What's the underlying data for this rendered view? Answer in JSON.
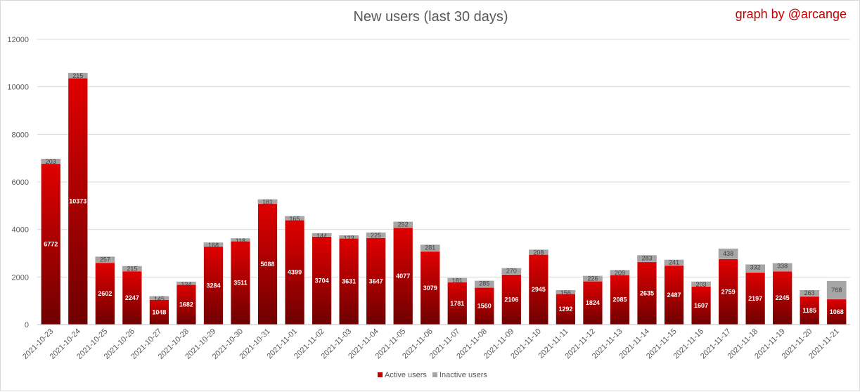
{
  "chart_data": {
    "type": "bar",
    "stacked": true,
    "title": "New users (last 30 days)",
    "credit": "graph by @arcange",
    "categories": [
      "2021-10-23",
      "2021-10-24",
      "2021-10-25",
      "2021-10-26",
      "2021-10-27",
      "2021-10-28",
      "2021-10-29",
      "2021-10-30",
      "2021-10-31",
      "2021-11-01",
      "2021-11-02",
      "2021-11-03",
      "2021-11-04",
      "2021-11-05",
      "2021-11-06",
      "2021-11-07",
      "2021-11-08",
      "2021-11-09",
      "2021-11-10",
      "2021-11-11",
      "2021-11-12",
      "2021-11-13",
      "2021-11-14",
      "2021-11-15",
      "2021-11-16",
      "2021-11-17",
      "2021-11-18",
      "2021-11-19",
      "2021-11-20",
      "2021-11-21"
    ],
    "series": [
      {
        "name": "Active users",
        "color": "#c00000",
        "values": [
          6772,
          10373,
          2602,
          2247,
          1048,
          1682,
          3284,
          3511,
          5088,
          4399,
          3704,
          3631,
          3647,
          4077,
          3079,
          1781,
          1560,
          2106,
          2945,
          1292,
          1824,
          2085,
          2635,
          2487,
          1607,
          2759,
          2197,
          2245,
          1185,
          1068
        ]
      },
      {
        "name": "Inactive users",
        "color": "#a6a6a6",
        "values": [
          203,
          215,
          257,
          215,
          145,
          124,
          168,
          118,
          181,
          165,
          144,
          123,
          225,
          252,
          281,
          181,
          285,
          270,
          208,
          156,
          226,
          209,
          283,
          241,
          203,
          438,
          332,
          338,
          263,
          768
        ]
      }
    ],
    "ylim": [
      0,
      12000
    ],
    "yticks": [
      0,
      2000,
      4000,
      6000,
      8000,
      10000,
      12000
    ],
    "grid": true,
    "legend": "bottom-center"
  }
}
